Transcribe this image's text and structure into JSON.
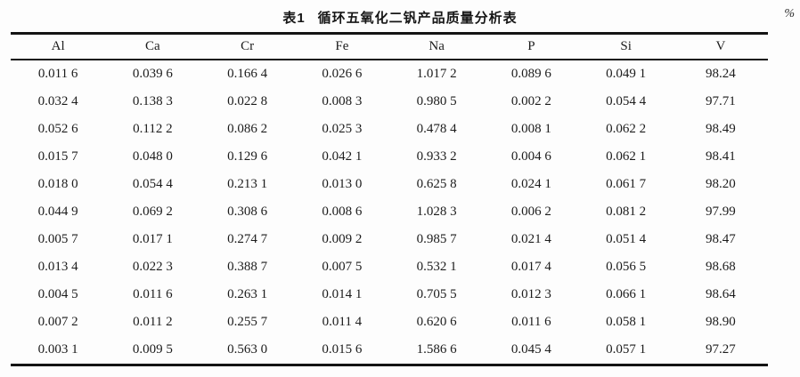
{
  "table": {
    "label": "表1",
    "title": "循环五氧化二钒产品质量分析表",
    "unit": "%",
    "columns": [
      "Al",
      "Ca",
      "Cr",
      "Fe",
      "Na",
      "P",
      "Si",
      "V"
    ],
    "rows": [
      [
        "0.011 6",
        "0.039 6",
        "0.166 4",
        "0.026 6",
        "1.017 2",
        "0.089 6",
        "0.049 1",
        "98.24"
      ],
      [
        "0.032 4",
        "0.138 3",
        "0.022 8",
        "0.008 3",
        "0.980 5",
        "0.002 2",
        "0.054 4",
        "97.71"
      ],
      [
        "0.052 6",
        "0.112 2",
        "0.086 2",
        "0.025 3",
        "0.478 4",
        "0.008 1",
        "0.062 2",
        "98.49"
      ],
      [
        "0.015 7",
        "0.048 0",
        "0.129 6",
        "0.042 1",
        "0.933 2",
        "0.004 6",
        "0.062 1",
        "98.41"
      ],
      [
        "0.018 0",
        "0.054 4",
        "0.213 1",
        "0.013 0",
        "0.625 8",
        "0.024 1",
        "0.061 7",
        "98.20"
      ],
      [
        "0.044 9",
        "0.069 2",
        "0.308 6",
        "0.008 6",
        "1.028 3",
        "0.006 2",
        "0.081 2",
        "97.99"
      ],
      [
        "0.005 7",
        "0.017 1",
        "0.274 7",
        "0.009 2",
        "0.985 7",
        "0.021 4",
        "0.051 4",
        "98.47"
      ],
      [
        "0.013 4",
        "0.022 3",
        "0.388 7",
        "0.007 5",
        "0.532 1",
        "0.017 4",
        "0.056 5",
        "98.68"
      ],
      [
        "0.004 5",
        "0.011 6",
        "0.263 1",
        "0.014 1",
        "0.705 5",
        "0.012 3",
        "0.066 1",
        "98.64"
      ],
      [
        "0.007 2",
        "0.011 2",
        "0.255 7",
        "0.011 4",
        "0.620 6",
        "0.011 6",
        "0.058 1",
        "98.90"
      ],
      [
        "0.003 1",
        "0.009 5",
        "0.563 0",
        "0.015 6",
        "1.586 6",
        "0.045 4",
        "0.057 1",
        "97.27"
      ]
    ]
  },
  "chart_data": {
    "type": "table",
    "title": "表1 循环五氧化二钒产品质量分析表",
    "unit": "%",
    "columns": [
      "Al",
      "Ca",
      "Cr",
      "Fe",
      "Na",
      "P",
      "Si",
      "V"
    ],
    "rows": [
      [
        0.0116,
        0.0396,
        0.1664,
        0.0266,
        1.0172,
        0.0896,
        0.0491,
        98.24
      ],
      [
        0.0324,
        0.1383,
        0.0228,
        0.0083,
        0.9805,
        0.0022,
        0.0544,
        97.71
      ],
      [
        0.0526,
        0.1122,
        0.0862,
        0.0253,
        0.4784,
        0.0081,
        0.0622,
        98.49
      ],
      [
        0.0157,
        0.048,
        0.1296,
        0.0421,
        0.9332,
        0.0046,
        0.0621,
        98.41
      ],
      [
        0.018,
        0.0544,
        0.2131,
        0.013,
        0.6258,
        0.0241,
        0.0617,
        98.2
      ],
      [
        0.0449,
        0.0692,
        0.3086,
        0.0086,
        1.0283,
        0.0062,
        0.0812,
        97.99
      ],
      [
        0.0057,
        0.0171,
        0.2747,
        0.0092,
        0.9857,
        0.0214,
        0.0514,
        98.47
      ],
      [
        0.0134,
        0.0223,
        0.3887,
        0.0075,
        0.5321,
        0.0174,
        0.0565,
        98.68
      ],
      [
        0.0045,
        0.0116,
        0.2631,
        0.0141,
        0.7055,
        0.0123,
        0.0661,
        98.64
      ],
      [
        0.0072,
        0.0112,
        0.2557,
        0.0114,
        0.6206,
        0.0116,
        0.0581,
        98.9
      ],
      [
        0.0031,
        0.0095,
        0.563,
        0.0156,
        1.5866,
        0.0454,
        0.0571,
        97.27
      ]
    ]
  }
}
